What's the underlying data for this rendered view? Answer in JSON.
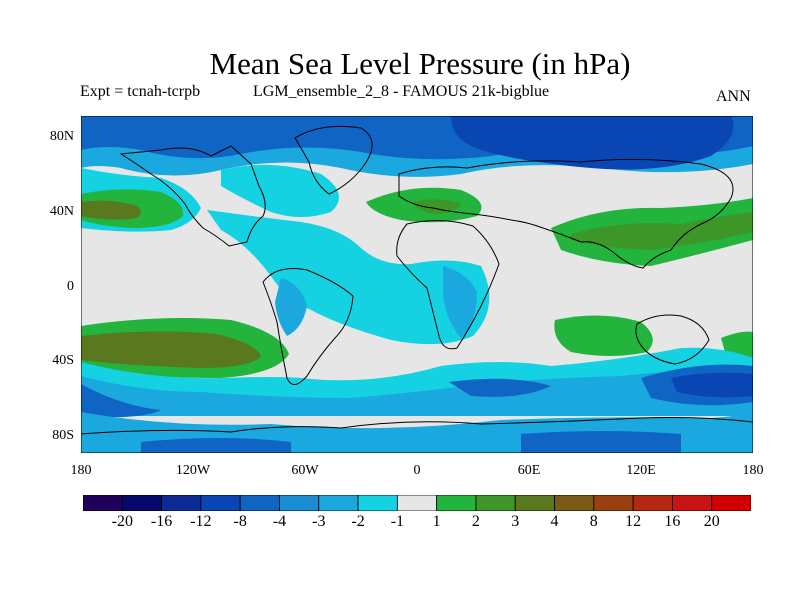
{
  "title": "Mean Sea Level Pressure (in hPa)",
  "expt_label": "Expt = tcnah-tcrpb",
  "ensemble_label": "LGM_ensemble_2_8 - FAMOUS 21k-bigblue",
  "season": "ANN",
  "lat_labels": [
    "80N",
    "40N",
    "0",
    "40S",
    "80S"
  ],
  "lon_labels": [
    "180",
    "120W",
    "60W",
    "0",
    "60E",
    "120E",
    "180"
  ],
  "colorbar": {
    "labels": [
      "-20",
      "-16",
      "-12",
      "-8",
      "-4",
      "-3",
      "-2",
      "-1",
      "1",
      "2",
      "3",
      "4",
      "8",
      "12",
      "16",
      "20"
    ],
    "colors": [
      "#20005a",
      "#06086e",
      "#0a2a96",
      "#0a45b4",
      "#0f64c4",
      "#1a8cd2",
      "#1aa8de",
      "#14d2e1",
      "#e6e6e6",
      "#22b43c",
      "#3c9628",
      "#5a781e",
      "#7a5a14",
      "#9a4010",
      "#b42810",
      "#c81414",
      "#d20000"
    ]
  },
  "colors": {
    "land_outline": "#000000",
    "neutral": "#e6e6e6"
  }
}
